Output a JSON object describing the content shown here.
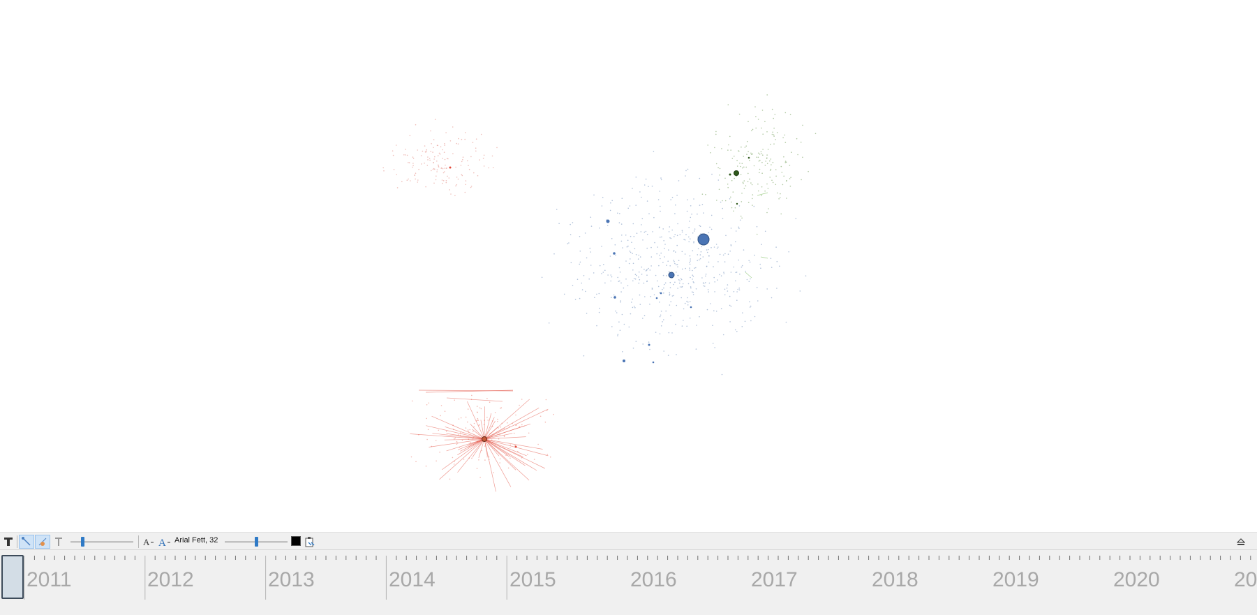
{
  "toolbar": {
    "text_tool_icon": "bold-t-icon",
    "edge_selection_icon": "edge-select-icon",
    "node_selection_icon": "node-select-icon",
    "label_text_icon": "label-t-icon",
    "label_size_slider_level": 0.18,
    "decrease_font_icon": "font-decrease-icon",
    "increase_font_icon": "font-increase-icon",
    "font_label": "Arial Fett, 32",
    "font_size_slider_level": 0.5,
    "color_swatch": "#000000",
    "copy_attributes_icon": "clipboard-icon",
    "collapse_icon": "eject-icon"
  },
  "timeline": {
    "years": [
      "2011",
      "2012",
      "2013",
      "2014",
      "2015",
      "2016",
      "2017",
      "2018",
      "2019",
      "2020",
      "20"
    ]
  },
  "colors": {
    "community_blue": "#4a74b4",
    "community_green": "#2f5a1c",
    "community_red": "#e24a3b",
    "accent": "#2f7ac6"
  }
}
